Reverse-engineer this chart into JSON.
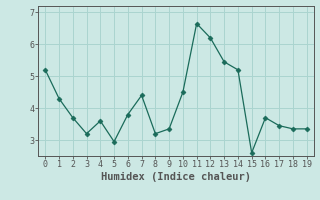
{
  "x": [
    0,
    1,
    2,
    3,
    4,
    5,
    6,
    7,
    8,
    9,
    10,
    11,
    12,
    13,
    14,
    15,
    16,
    17,
    18,
    19
  ],
  "y": [
    5.2,
    4.3,
    3.7,
    3.2,
    3.6,
    2.95,
    3.8,
    4.4,
    3.2,
    3.35,
    4.5,
    6.65,
    6.2,
    5.45,
    5.2,
    2.6,
    3.7,
    3.45,
    3.35,
    3.35
  ],
  "line_color": "#1a6b5a",
  "marker": "D",
  "marker_size": 2.5,
  "xlabel": "Humidex (Indice chaleur)",
  "background_color": "#cce8e4",
  "grid_color": "#aad4cf",
  "ylim": [
    2.5,
    7.2
  ],
  "xlim": [
    -0.5,
    19.5
  ],
  "yticks": [
    3,
    4,
    5,
    6,
    7
  ],
  "xticks": [
    0,
    1,
    2,
    3,
    4,
    5,
    6,
    7,
    8,
    9,
    10,
    11,
    12,
    13,
    14,
    15,
    16,
    17,
    18,
    19
  ],
  "tick_fontsize": 6,
  "xlabel_fontsize": 7.5,
  "spine_color": "#555555",
  "tick_color": "#555555"
}
